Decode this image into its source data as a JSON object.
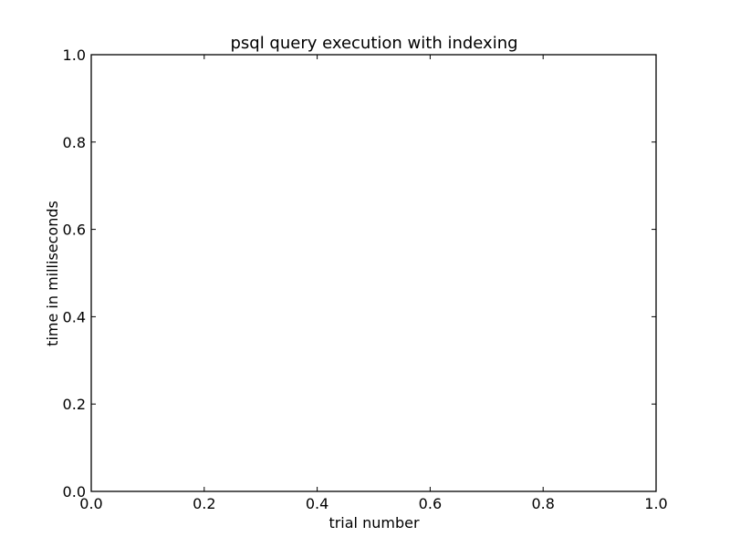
{
  "chart_data": {
    "type": "line",
    "title": "psql query execution with indexing",
    "xlabel": "trial number",
    "ylabel": "time in milliseconds",
    "xlim": [
      0.0,
      1.0
    ],
    "ylim": [
      0.0,
      1.0
    ],
    "x_ticks": [
      "0.0",
      "0.2",
      "0.4",
      "0.6",
      "0.8",
      "1.0"
    ],
    "y_ticks": [
      "0.0",
      "0.2",
      "0.4",
      "0.6",
      "0.8",
      "1.0"
    ],
    "grid": false,
    "series": []
  }
}
